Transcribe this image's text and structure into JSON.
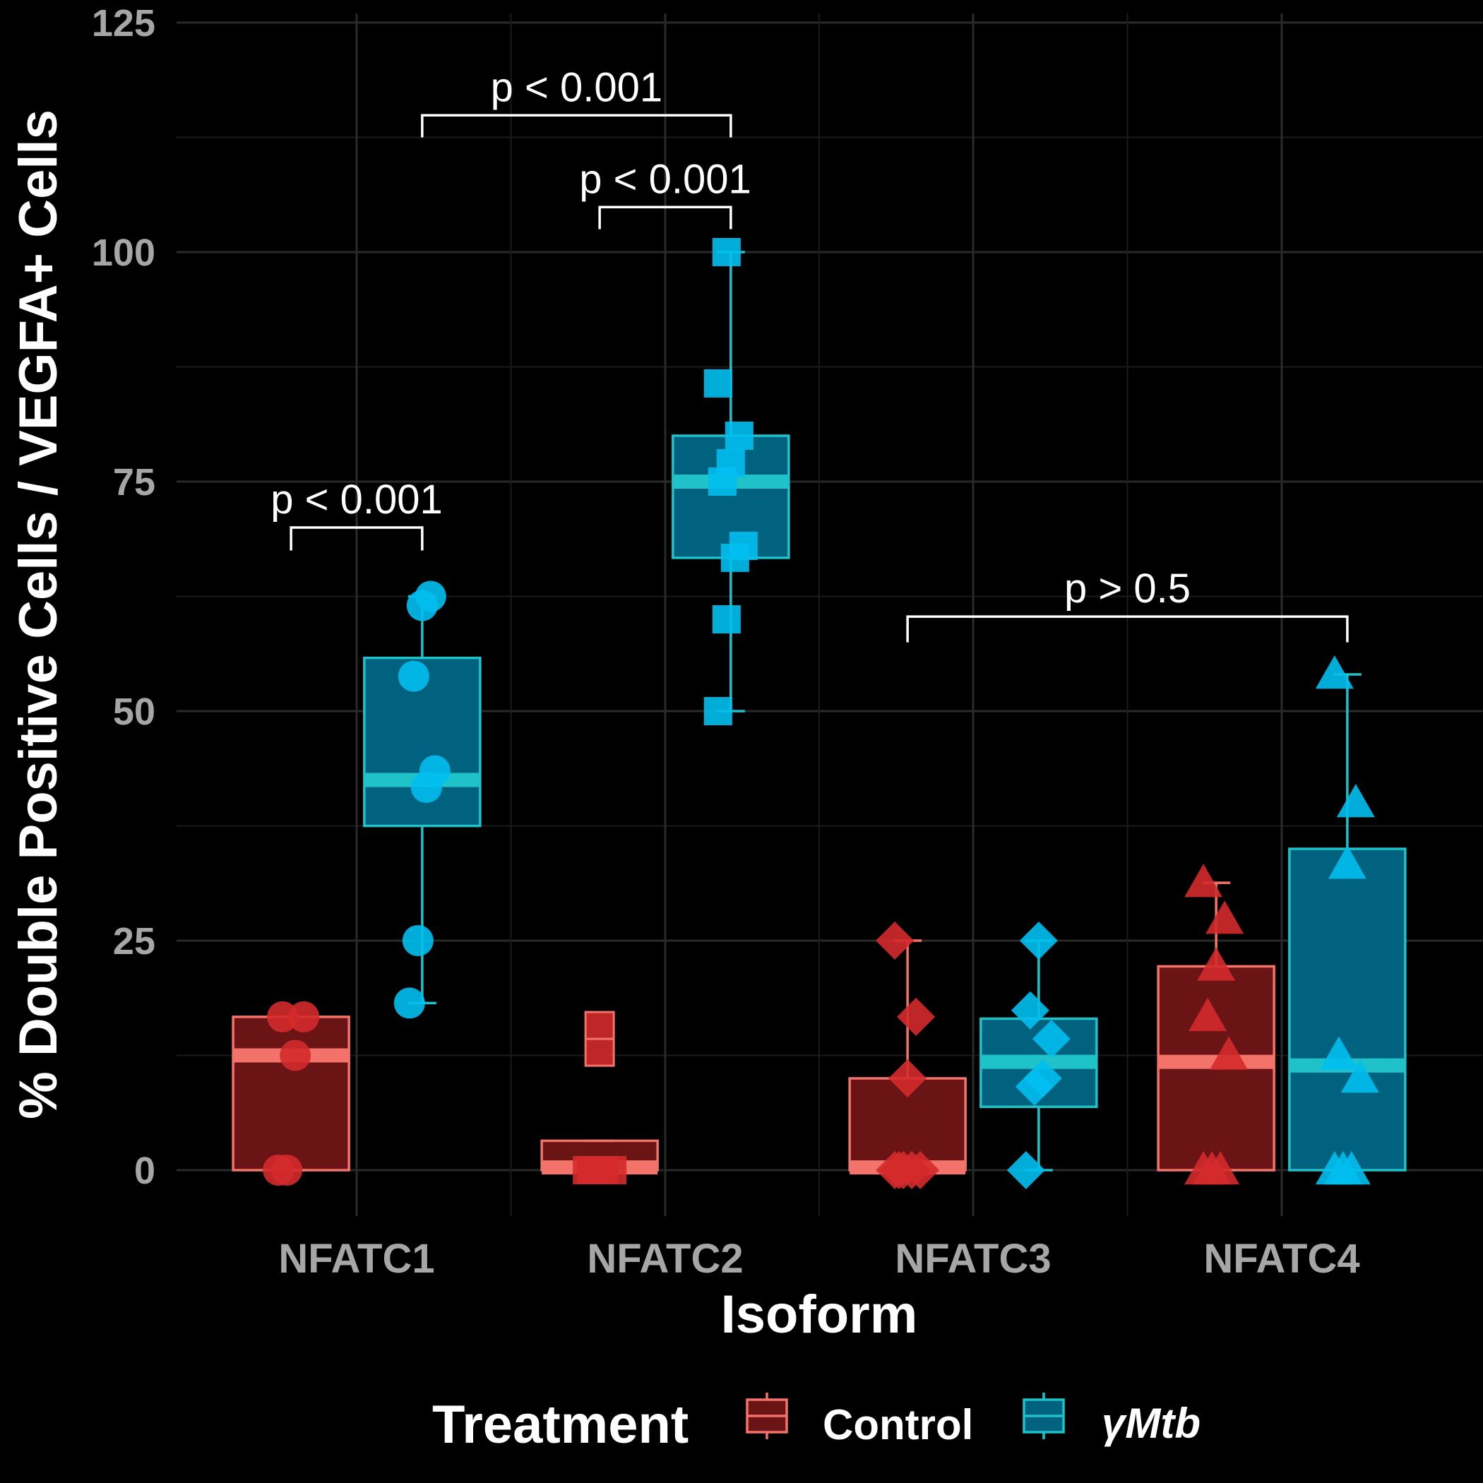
{
  "chart_data": {
    "type": "box",
    "xlabel": "Isoform",
    "ylabel": "% Double Positive Cells / VEGFA+ Cells",
    "ylim": [
      -5,
      126
    ],
    "yticks": [
      0,
      25,
      50,
      75,
      100,
      125
    ],
    "categories": [
      "NFATC1",
      "NFATC2",
      "NFATC3",
      "NFATC4"
    ],
    "grid": true,
    "legend": {
      "title": "Treatment",
      "position": "bottom",
      "entries": [
        {
          "label": "Control",
          "fill": "#6b1416",
          "stroke": "#f3726a"
        },
        {
          "label": "γMtb",
          "fill": "#00627f",
          "stroke": "#1fc2c9"
        }
      ]
    },
    "series": [
      {
        "name": "Control",
        "fill": "#6b1416",
        "stroke": "#f3726a",
        "point_color": "#d42a2c",
        "boxes": [
          {
            "category": "NFATC1",
            "shape": "circle",
            "q1": 0,
            "median": 12.5,
            "q3": 16.7,
            "whisker_low": 0,
            "whisker_high": 16.7,
            "points": [
              0,
              0,
              12.5,
              16.7,
              16.7
            ],
            "outliers": []
          },
          {
            "category": "NFATC2",
            "shape": "square",
            "q1": 0,
            "median": 0.3,
            "q3": 3.2,
            "whisker_low": 0,
            "whisker_high": 3.2,
            "points": [
              0,
              0,
              0,
              0,
              0,
              0
            ],
            "outliers": [
              14.3
            ]
          },
          {
            "category": "NFATC3",
            "shape": "diamond",
            "q1": 0,
            "median": 0.3,
            "q3": 10,
            "whisker_low": 0,
            "whisker_high": 25,
            "points": [
              0,
              0,
              0,
              0,
              0,
              10,
              16.7,
              25
            ],
            "outliers": []
          },
          {
            "category": "NFATC4",
            "shape": "triangle",
            "q1": 0,
            "median": 11.8,
            "q3": 22.2,
            "whisker_low": 0,
            "whisker_high": 31.3,
            "points": [
              0,
              0,
              0,
              12.5,
              16.7,
              22.2,
              27.3,
              31.3
            ],
            "outliers": []
          }
        ]
      },
      {
        "name": "γMtb",
        "fill": "#00627f",
        "stroke": "#1fc2c9",
        "point_color": "#00bfef",
        "boxes": [
          {
            "category": "NFATC1",
            "shape": "circle",
            "q1": 37.5,
            "median": 42.5,
            "q3": 55.8,
            "whisker_low": 18.2,
            "whisker_high": 62.5,
            "points": [
              18.2,
              25,
              41.7,
              43.5,
              53.8,
              61.5,
              62.5
            ],
            "outliers": []
          },
          {
            "category": "NFATC2",
            "shape": "square",
            "q1": 66.7,
            "median": 75,
            "q3": 80,
            "whisker_low": 50,
            "whisker_high": 100,
            "points": [
              50,
              60,
              66.7,
              68,
              75,
              77,
              80,
              85.7,
              100
            ],
            "outliers": []
          },
          {
            "category": "NFATC3",
            "shape": "diamond",
            "q1": 6.9,
            "median": 11.8,
            "q3": 16.5,
            "whisker_low": 0,
            "whisker_high": 25,
            "points": [
              0,
              9.1,
              10,
              14.3,
              17.4,
              25
            ],
            "outliers": []
          },
          {
            "category": "NFATC4",
            "shape": "triangle",
            "q1": 0,
            "median": 11.4,
            "q3": 35,
            "whisker_low": 0,
            "whisker_high": 54,
            "points": [
              0,
              0,
              0,
              10,
              12.5,
              33.3,
              40,
              54
            ],
            "outliers": []
          }
        ]
      }
    ],
    "annotations": [
      {
        "label": "p < 0.001",
        "from_category": 0,
        "from_series": 0,
        "to_category": 0,
        "to_series": 1,
        "bracket_y": 70,
        "tick_low_y": 67.5
      },
      {
        "label": "p < 0.001",
        "from_category": 0,
        "from_series": 1,
        "to_category": 1,
        "to_series": 1,
        "bracket_y": 114.9,
        "tick_low_y": 112.5
      },
      {
        "label": "p < 0.001",
        "from_category": 1,
        "from_series": 0,
        "to_category": 1,
        "to_series": 1,
        "bracket_y": 104.9,
        "tick_low_y": 102.5
      },
      {
        "label": "p > 0.5",
        "from_category": 2,
        "from_series": 0,
        "to_category": 3,
        "to_series": 1,
        "bracket_y": 60.3,
        "tick_low_y": 57.5
      }
    ]
  }
}
